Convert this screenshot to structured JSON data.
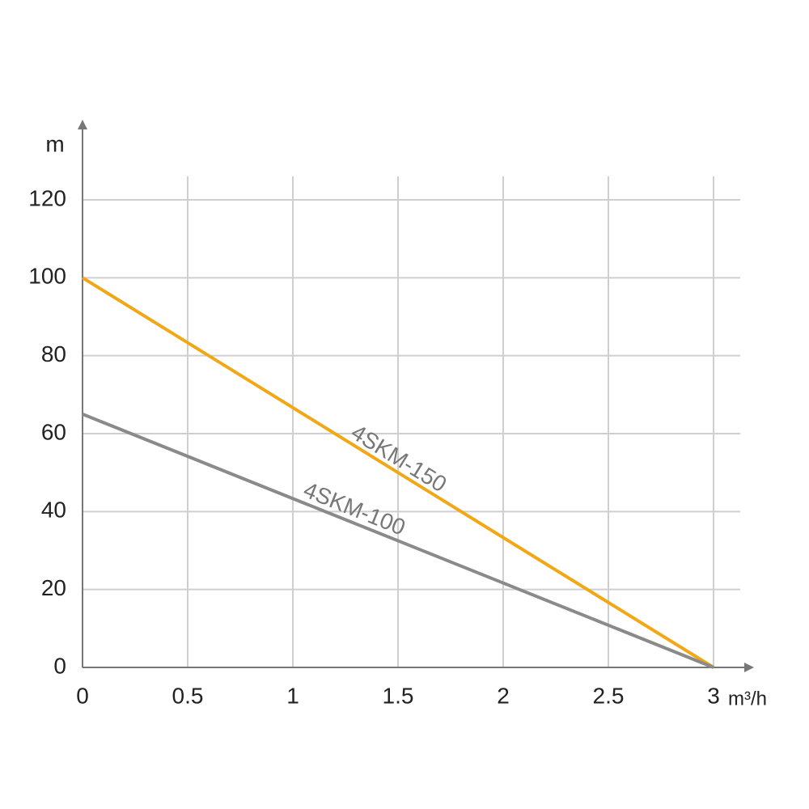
{
  "chart_data": {
    "type": "line",
    "y_label": "m",
    "x_label": "m³/h",
    "x": [
      0,
      3
    ],
    "series": [
      {
        "name": "4SKM-150",
        "color": "#f0a818",
        "values": [
          100,
          0
        ]
      },
      {
        "name": "4SKM-100",
        "color": "#8a8a8a",
        "values": [
          65,
          0
        ]
      }
    ],
    "xlim": [
      0,
      3
    ],
    "xticks": [
      0,
      0.5,
      1,
      1.5,
      2,
      2.5,
      3
    ],
    "ylim": [
      0,
      120
    ],
    "yticks": [
      0,
      20,
      40,
      60,
      80,
      100,
      120
    ],
    "grid": true
  }
}
